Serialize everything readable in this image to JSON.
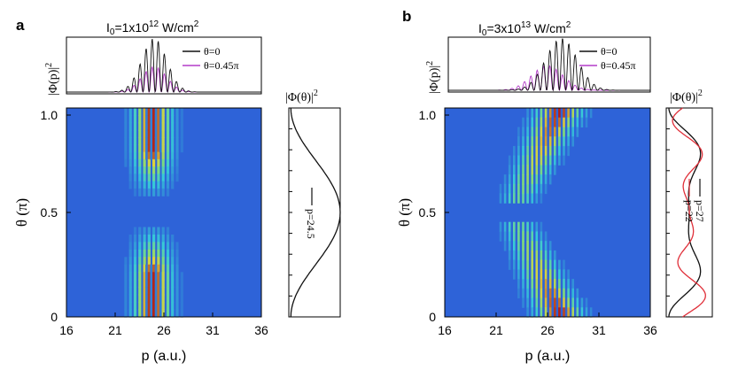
{
  "panels": [
    {
      "letter": "a",
      "title": {
        "prefix": "I",
        "sub": "0",
        "main": "=1x10",
        "exp": "12",
        "unit": " W/cm",
        "unit_exp": "2"
      },
      "top_ylabel": "|Φ(p)|",
      "top_ylabel_exp": "2",
      "legend": [
        {
          "label": "θ=0",
          "color": "#111111"
        },
        {
          "label": "θ=0.45π",
          "color": "#b43cc8"
        }
      ],
      "heatmap": {
        "xlabel": "p (a.u.)",
        "ylabel": "θ (π)",
        "xticks": [
          "16",
          "21",
          "26",
          "31",
          "36"
        ],
        "yticks": [
          "0",
          "0.5",
          "1.0"
        ]
      },
      "side": {
        "title": "|Φ(θ)|",
        "title_exp": "2",
        "curve_labels": [
          "p=24.5"
        ]
      }
    },
    {
      "letter": "b",
      "title": {
        "prefix": "I",
        "sub": "0",
        "main": "=3x10",
        "exp": "13",
        "unit": " W/cm",
        "unit_exp": "2"
      },
      "top_ylabel": "|Φ(p)|",
      "top_ylabel_exp": "2",
      "legend": [
        {
          "label": "θ=0",
          "color": "#111111"
        },
        {
          "label": "θ=0.45π",
          "color": "#b43cc8"
        }
      ],
      "heatmap": {
        "xlabel": "p (a.u.)",
        "ylabel": "θ (π)",
        "xticks": [
          "16",
          "21",
          "26",
          "31",
          "36"
        ],
        "yticks": [
          "0",
          "0.5",
          "1.0"
        ]
      },
      "side": {
        "title": "|Φ(θ)|",
        "title_exp": "2",
        "curve_labels": [
          "p=27",
          "p=22"
        ],
        "curve_colors": [
          "#111111",
          "#e0303a"
        ]
      }
    }
  ],
  "colors": {
    "background": "#2e63d8",
    "mid": "#37c9d8",
    "warm": "#e0d23a",
    "hot": "#b32016"
  }
}
